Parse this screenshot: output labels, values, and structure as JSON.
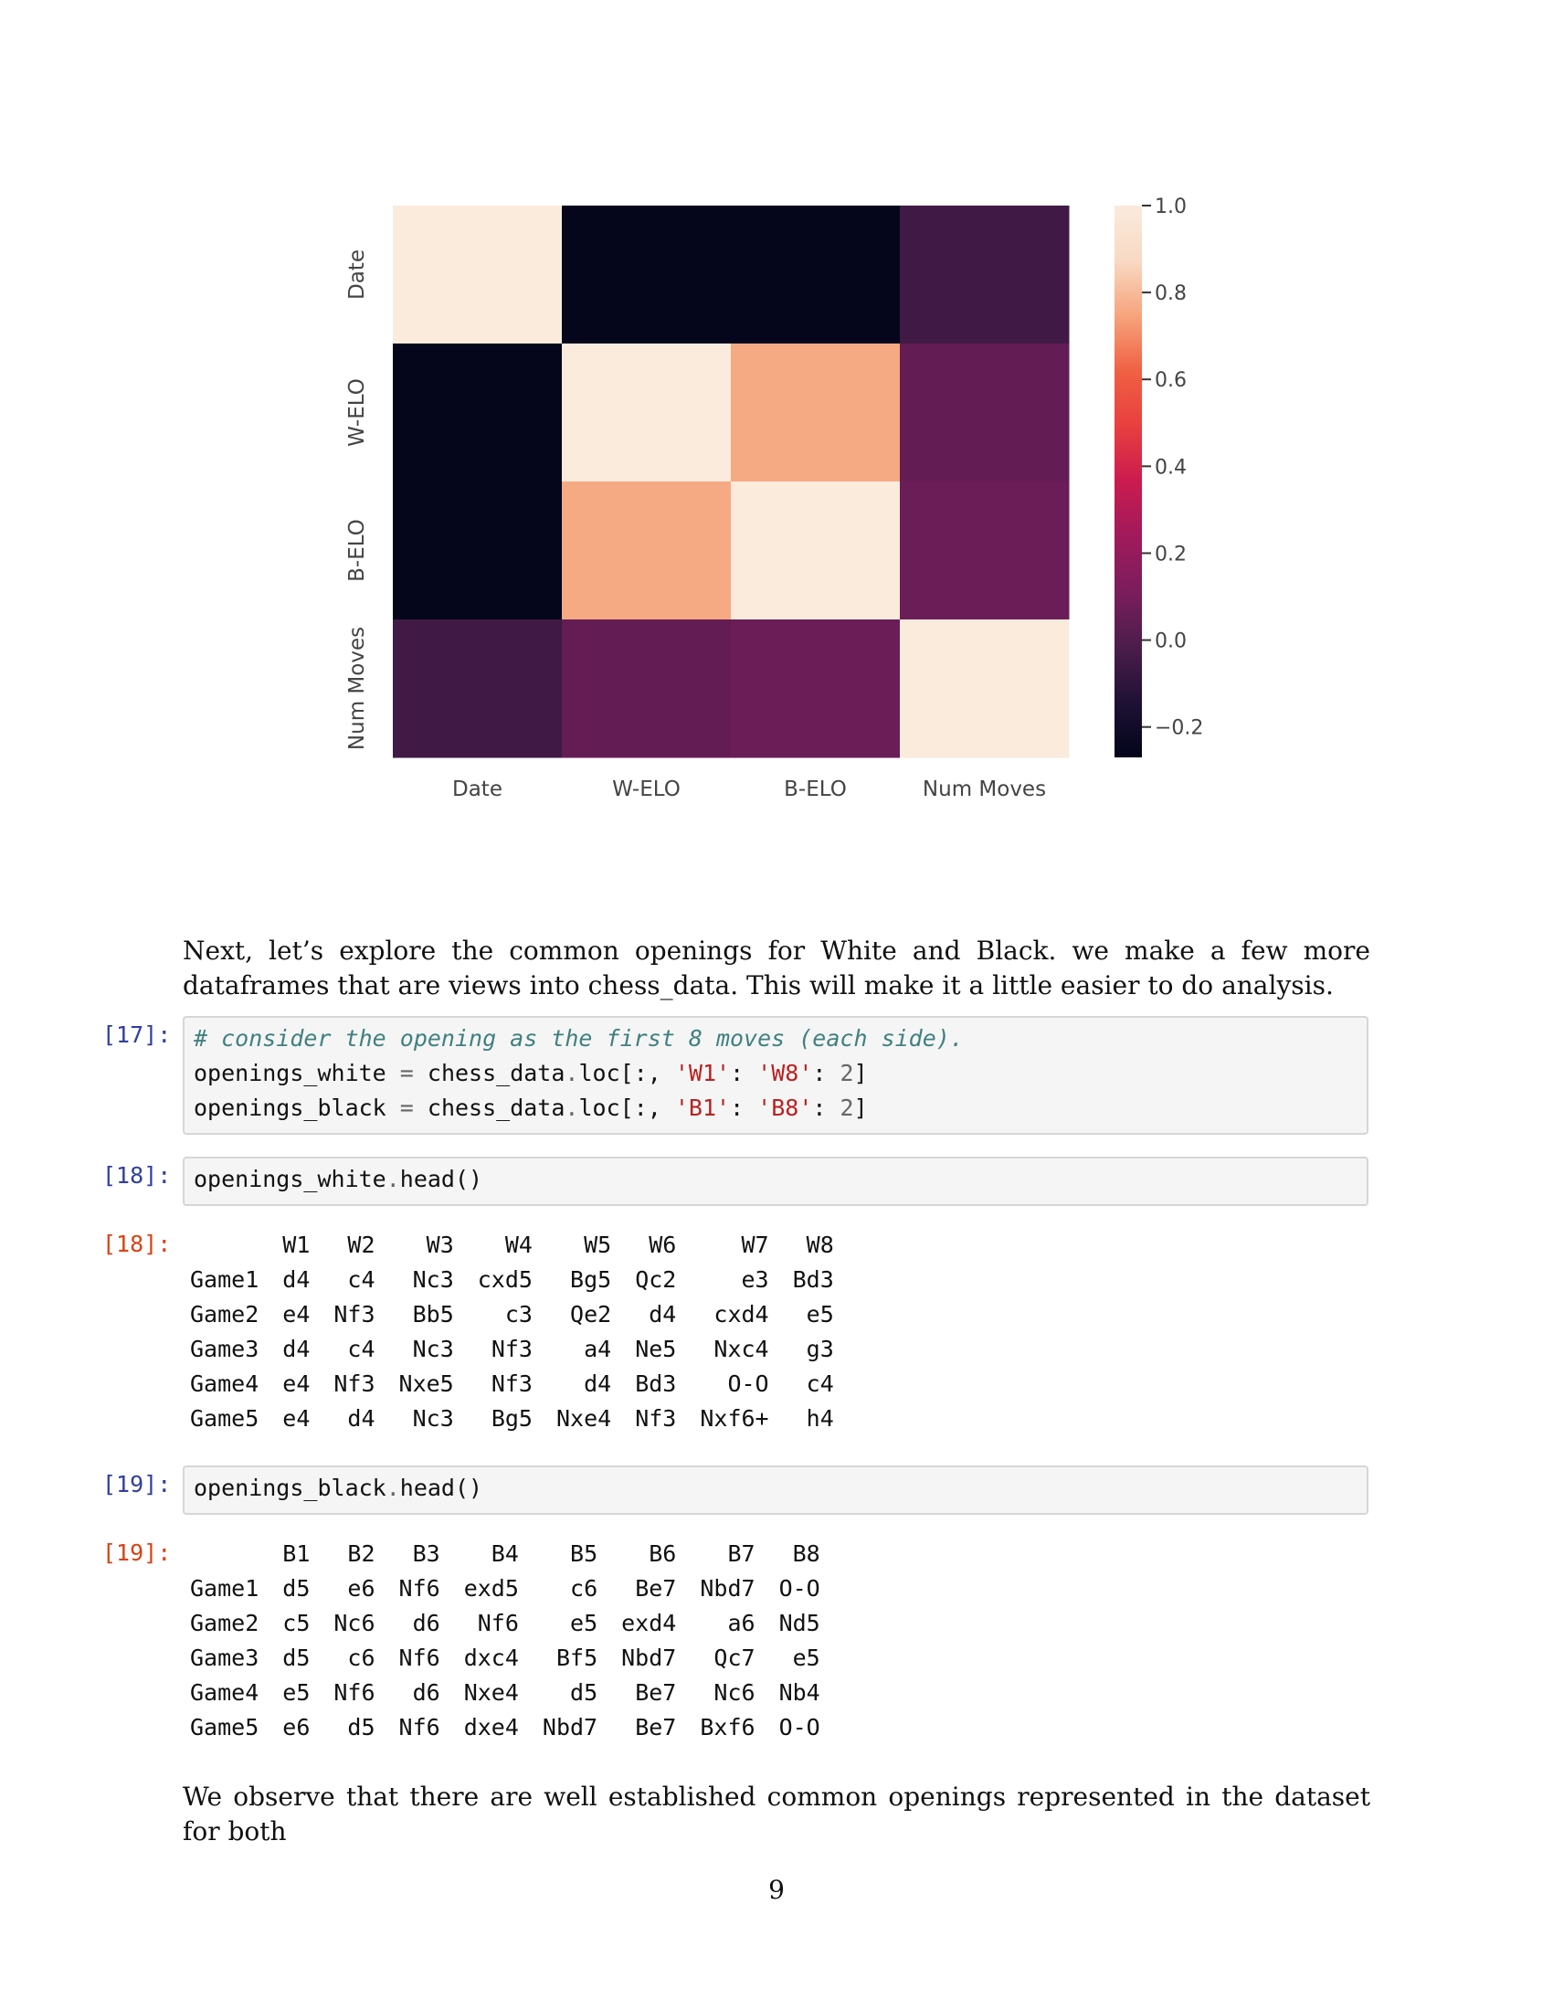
{
  "chart_data": {
    "type": "heatmap",
    "row_labels": [
      "Date",
      "W-ELO",
      "B-ELO",
      "Num Moves"
    ],
    "col_labels": [
      "Date",
      "W-ELO",
      "B-ELO",
      "Num Moves"
    ],
    "values": [
      [
        1.0,
        -0.26,
        -0.26,
        -0.05
      ],
      [
        -0.26,
        1.0,
        0.76,
        0.05
      ],
      [
        -0.26,
        0.76,
        1.0,
        0.07
      ],
      [
        -0.05,
        0.05,
        0.07,
        1.0
      ]
    ],
    "vmin": -0.27,
    "vmax": 1.0,
    "colorbar_ticks": [
      "1.0",
      "0.8",
      "0.6",
      "0.4",
      "0.2",
      "0.0",
      "−0.2"
    ],
    "colorbar_tick_values": [
      1.0,
      0.8,
      0.6,
      0.4,
      0.2,
      0.0,
      -0.2
    ],
    "colormap": [
      "#03051a",
      "#1f1135",
      "#4c1d4b",
      "#7a1d5c",
      "#a11a5b",
      "#cb1b4f",
      "#e83f3f",
      "#f06043",
      "#f6a47c",
      "#f8d9c3",
      "#faebdd"
    ]
  },
  "text_1": "Next, let’s explore the common openings for White and Black. we make a few more dataframes that are views into chess_data. This will make it a little easier to do analysis.",
  "cells": {
    "c17": {
      "prompt": "[17]:",
      "comment": "# consider the opening as the first 8 moves (each side).",
      "line2": {
        "a": "openings_white ",
        "op": "=",
        "b": " chess_data",
        "dot": ".",
        "c": "loc[:, ",
        "s1": "'W1'",
        "d": ": ",
        "s2": "'W8'",
        "e": ": ",
        "n": "2",
        "f": "]"
      },
      "line3": {
        "a": "openings_black ",
        "op": "=",
        "b": " chess_data",
        "dot": ".",
        "c": "loc[:, ",
        "s1": "'B1'",
        "d": ": ",
        "s2": "'B8'",
        "e": ": ",
        "n": "2",
        "f": "]"
      }
    },
    "c18_in": {
      "prompt": "[18]:",
      "obj": "openings_white",
      "dot": ".",
      "call": "head()"
    },
    "c18_out": {
      "prompt": "[18]:",
      "columns": [
        "W1",
        "W2",
        "W3",
        "W4",
        "W5",
        "W6",
        "W7",
        "W8"
      ],
      "rows": [
        {
          "index": "Game1",
          "cells": [
            "d4",
            "c4",
            "Nc3",
            "cxd5",
            "Bg5",
            "Qc2",
            "e3",
            "Bd3"
          ]
        },
        {
          "index": "Game2",
          "cells": [
            "e4",
            "Nf3",
            "Bb5",
            "c3",
            "Qe2",
            "d4",
            "cxd4",
            "e5"
          ]
        },
        {
          "index": "Game3",
          "cells": [
            "d4",
            "c4",
            "Nc3",
            "Nf3",
            "a4",
            "Ne5",
            "Nxc4",
            "g3"
          ]
        },
        {
          "index": "Game4",
          "cells": [
            "e4",
            "Nf3",
            "Nxe5",
            "Nf3",
            "d4",
            "Bd3",
            "O-O",
            "c4"
          ]
        },
        {
          "index": "Game5",
          "cells": [
            "e4",
            "d4",
            "Nc3",
            "Bg5",
            "Nxe4",
            "Nf3",
            "Nxf6+",
            "h4"
          ]
        }
      ]
    },
    "c19_in": {
      "prompt": "[19]:",
      "obj": "openings_black",
      "dot": ".",
      "call": "head()"
    },
    "c19_out": {
      "prompt": "[19]:",
      "columns": [
        "B1",
        "B2",
        "B3",
        "B4",
        "B5",
        "B6",
        "B7",
        "B8"
      ],
      "rows": [
        {
          "index": "Game1",
          "cells": [
            "d5",
            "e6",
            "Nf6",
            "exd5",
            "c6",
            "Be7",
            "Nbd7",
            "O-O"
          ]
        },
        {
          "index": "Game2",
          "cells": [
            "c5",
            "Nc6",
            "d6",
            "Nf6",
            "e5",
            "exd4",
            "a6",
            "Nd5"
          ]
        },
        {
          "index": "Game3",
          "cells": [
            "d5",
            "c6",
            "Nf6",
            "dxc4",
            "Bf5",
            "Nbd7",
            "Qc7",
            "e5"
          ]
        },
        {
          "index": "Game4",
          "cells": [
            "e5",
            "Nf6",
            "d6",
            "Nxe4",
            "d5",
            "Be7",
            "Nc6",
            "Nb4"
          ]
        },
        {
          "index": "Game5",
          "cells": [
            "e6",
            "d5",
            "Nf6",
            "dxe4",
            "Nbd7",
            "Be7",
            "Bxf6",
            "O-O"
          ]
        }
      ]
    }
  },
  "text_2": "We observe that there are well established common openings represented in the dataset for both",
  "page_number": "9"
}
